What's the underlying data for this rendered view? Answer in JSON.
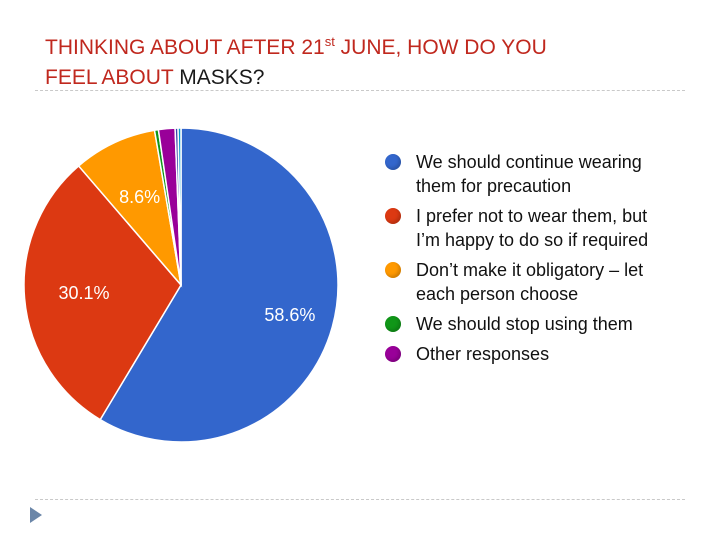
{
  "title": {
    "line1_main": "THINKING ABOUT AFTER 21",
    "line1_sup": "st",
    "line1_rest": " JUNE, HOW DO YOU",
    "line2_lead": "FEEL ABOUT ",
    "line2_tail": "MASKS?"
  },
  "chart_data": {
    "type": "pie",
    "start_angle_deg": 90,
    "direction": "clockwise",
    "slices": [
      {
        "name": "We should continue wearing them for precaution",
        "value": 58.6,
        "label": "58.6%",
        "color": "#3366cc"
      },
      {
        "name": "I prefer not to wear them, but I’m happy to do so if required",
        "value": 30.1,
        "label": "30.1%",
        "color": "#dc3912"
      },
      {
        "name": "Don’t make it obligatory – let each person choose",
        "value": 8.6,
        "label": "8.6%",
        "color": "#ff9900"
      },
      {
        "name": "We should stop using them",
        "value": 0.4,
        "label": "",
        "color": "#109618"
      },
      {
        "name": "Other responses",
        "value": 1.7,
        "label": "",
        "color": "#990099"
      },
      {
        "name": "",
        "value": 0.3,
        "label": "",
        "color": "#3b3eac"
      },
      {
        "name": "",
        "value": 0.3,
        "label": "",
        "color": "#0099c6"
      }
    ],
    "legend": {
      "position": "right",
      "items": [
        {
          "lines": [
            "We should continue wearing",
            "them for precaution"
          ],
          "color": "#3366cc"
        },
        {
          "lines": [
            "I prefer not to wear them, but",
            "I’m happy to do so if required"
          ],
          "color": "#dc3912"
        },
        {
          "lines": [
            "Don’t make it obligatory – let",
            "each person choose"
          ],
          "color": "#ff9900"
        },
        {
          "lines": [
            "We should stop using them"
          ],
          "color": "#109618"
        },
        {
          "lines": [
            "Other responses"
          ],
          "color": "#990099"
        }
      ]
    }
  },
  "colors": {
    "title_accent": "#c0281e",
    "nav_arrow": "#6b86a8"
  },
  "icons": {
    "nav": "triangle-right-icon"
  }
}
